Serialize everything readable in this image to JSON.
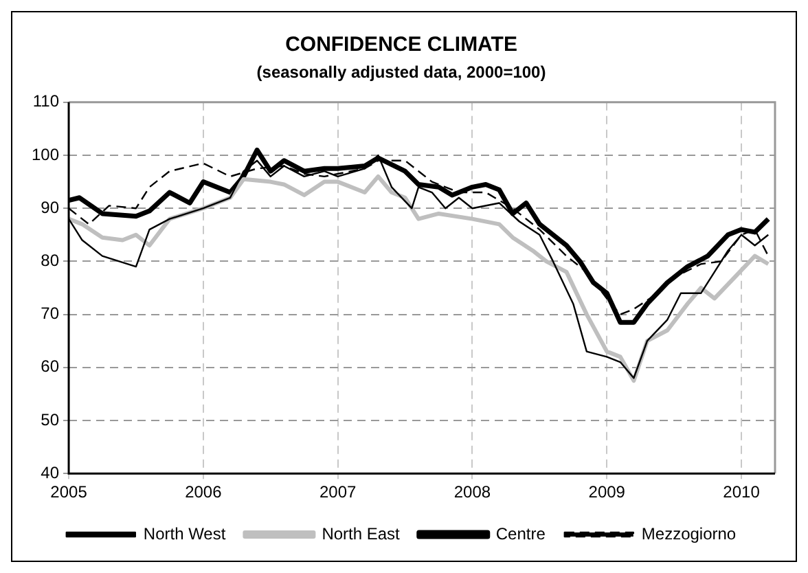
{
  "chart_data": {
    "type": "line",
    "title": "CONFIDENCE CLIMATE",
    "subtitle": "(seasonally adjusted data, 2000=100)",
    "xlim": [
      2005,
      2010.25
    ],
    "xticks": [
      2005,
      2006,
      2007,
      2008,
      2009,
      2010
    ],
    "ylim": [
      40,
      110
    ],
    "yticks": [
      40,
      50,
      60,
      70,
      80,
      90,
      100,
      110
    ],
    "grid": true,
    "legend": "bottom",
    "marker": "none",
    "series": [
      {
        "name": "North West",
        "color": "#000000",
        "line_style": "solid",
        "x": [
          2005.0,
          2005.1,
          2005.25,
          2005.5,
          2005.6,
          2005.75,
          2006.0,
          2006.2,
          2006.3,
          2006.4,
          2006.5,
          2006.6,
          2006.75,
          2006.9,
          2007.0,
          2007.2,
          2007.3,
          2007.4,
          2007.55,
          2007.6,
          2007.7,
          2007.8,
          2007.9,
          2008.0,
          2008.2,
          2008.35,
          2008.5,
          2008.6,
          2008.75,
          2008.85,
          2009.0,
          2009.1,
          2009.2,
          2009.3,
          2009.45,
          2009.55,
          2009.7,
          2009.8,
          2009.9,
          2010.0,
          2010.1,
          2010.2
        ],
        "values": [
          88,
          84,
          81,
          79,
          86,
          88,
          90,
          92,
          97,
          99,
          96,
          98,
          96,
          97,
          96,
          97.5,
          100,
          94,
          90,
          94,
          93,
          90,
          92,
          90,
          91,
          87.5,
          85,
          80,
          72,
          63,
          62,
          61,
          58,
          65,
          69,
          74,
          74,
          78,
          82,
          85,
          83,
          85
        ]
      },
      {
        "name": "North East",
        "color": "#bfbfbf",
        "line_style": "solid",
        "x": [
          2005.0,
          2005.1,
          2005.25,
          2005.4,
          2005.5,
          2005.6,
          2005.75,
          2006.0,
          2006.2,
          2006.3,
          2006.5,
          2006.6,
          2006.75,
          2006.9,
          2007.0,
          2007.2,
          2007.3,
          2007.4,
          2007.5,
          2007.6,
          2007.75,
          2008.0,
          2008.2,
          2008.3,
          2008.45,
          2008.55,
          2008.7,
          2008.85,
          2009.0,
          2009.1,
          2009.2,
          2009.3,
          2009.45,
          2009.6,
          2009.7,
          2009.8,
          2009.95,
          2010.1,
          2010.2
        ],
        "values": [
          88,
          87,
          84.5,
          84,
          85,
          83,
          88,
          90,
          92,
          95.5,
          95,
          94.5,
          92.5,
          95,
          95,
          93,
          96,
          93,
          92,
          88,
          89,
          88,
          87,
          84.5,
          82,
          80,
          78,
          70,
          63,
          62,
          57.5,
          65,
          67,
          72,
          75,
          73,
          77,
          81,
          79.5
        ]
      },
      {
        "name": "Centre",
        "color": "#000000",
        "line_style": "solid",
        "x": [
          2005.0,
          2005.08,
          2005.25,
          2005.5,
          2005.6,
          2005.75,
          2005.9,
          2006.0,
          2006.2,
          2006.3,
          2006.4,
          2006.5,
          2006.6,
          2006.75,
          2006.9,
          2007.0,
          2007.2,
          2007.3,
          2007.5,
          2007.6,
          2007.75,
          2007.85,
          2008.0,
          2008.1,
          2008.2,
          2008.3,
          2008.4,
          2008.5,
          2008.6,
          2008.7,
          2008.8,
          2008.9,
          2009.0,
          2009.1,
          2009.2,
          2009.3,
          2009.45,
          2009.6,
          2009.75,
          2009.9,
          2010.0,
          2010.1,
          2010.2
        ],
        "values": [
          91.5,
          92,
          89,
          88.5,
          89.5,
          93,
          91,
          95,
          93,
          96,
          101,
          97,
          99,
          97,
          97.5,
          97.5,
          98,
          99.5,
          97,
          94.5,
          94,
          92.5,
          94,
          94.5,
          93.5,
          89,
          91,
          87,
          85,
          83,
          80,
          76,
          74,
          68.5,
          68.5,
          72,
          76,
          79,
          81,
          85,
          86,
          85.5,
          88
        ]
      },
      {
        "name": "Mezzogiorno",
        "color": "#000000",
        "line_style": "dashed",
        "x": [
          2005.0,
          2005.15,
          2005.3,
          2005.5,
          2005.6,
          2005.75,
          2006.0,
          2006.2,
          2006.4,
          2006.6,
          2006.75,
          2006.9,
          2007.0,
          2007.2,
          2007.3,
          2007.5,
          2007.7,
          2007.9,
          2008.1,
          2008.3,
          2008.5,
          2008.7,
          2008.85,
          2009.0,
          2009.1,
          2009.2,
          2009.35,
          2009.5,
          2009.7,
          2009.85,
          2010.0,
          2010.1,
          2010.2
        ],
        "values": [
          90,
          87,
          90.5,
          90,
          94,
          97,
          98.5,
          96,
          97.5,
          98,
          96.5,
          96,
          96.5,
          97.5,
          99,
          99,
          95,
          93,
          93,
          90,
          86,
          81,
          78,
          73,
          70,
          71,
          73.5,
          77,
          79.5,
          80,
          85,
          86,
          81
        ]
      }
    ]
  }
}
